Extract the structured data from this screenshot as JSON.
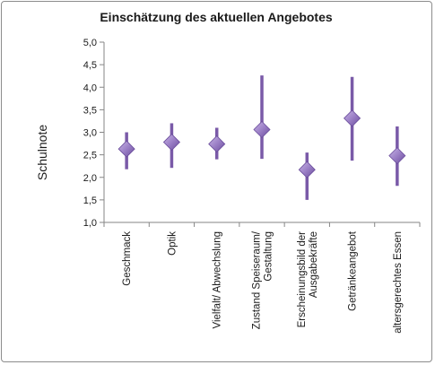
{
  "chart_data": {
    "type": "scatter",
    "title": "Einschätzung des aktuellen Angebotes",
    "ylabel": "Schulnote",
    "xlabel": "",
    "ylim": [
      1.0,
      5.0
    ],
    "yticks": [
      "1,0",
      "1,5",
      "2,0",
      "2,5",
      "3,0",
      "3,5",
      "4,0",
      "4,5",
      "5,0"
    ],
    "ytick_values": [
      1.0,
      1.5,
      2.0,
      2.5,
      3.0,
      3.5,
      4.0,
      4.5,
      5.0
    ],
    "grid": false,
    "categories": [
      [
        "Geschmack"
      ],
      [
        "Optik"
      ],
      [
        "Vielfalt/ Abwechslung"
      ],
      [
        "Zustand Speiseraum/",
        "Gestaltung"
      ],
      [
        "Erscheinungsbild der",
        "Ausgabekräfte"
      ],
      [
        "Getränkeangebot"
      ],
      [
        "altersgerechtes Essen"
      ]
    ],
    "values": [
      2.63,
      2.78,
      2.74,
      3.06,
      2.17,
      3.31,
      2.48
    ],
    "error_low": [
      2.18,
      2.21,
      2.4,
      2.41,
      1.5,
      2.37,
      1.81
    ],
    "error_high": [
      3.0,
      3.2,
      3.1,
      4.26,
      2.55,
      4.23,
      3.13
    ],
    "colors": {
      "marker": "#9b7fc6",
      "marker_dark": "#6a4c9c",
      "errorbar": "#7a5aa8",
      "axis": "#868686"
    }
  }
}
